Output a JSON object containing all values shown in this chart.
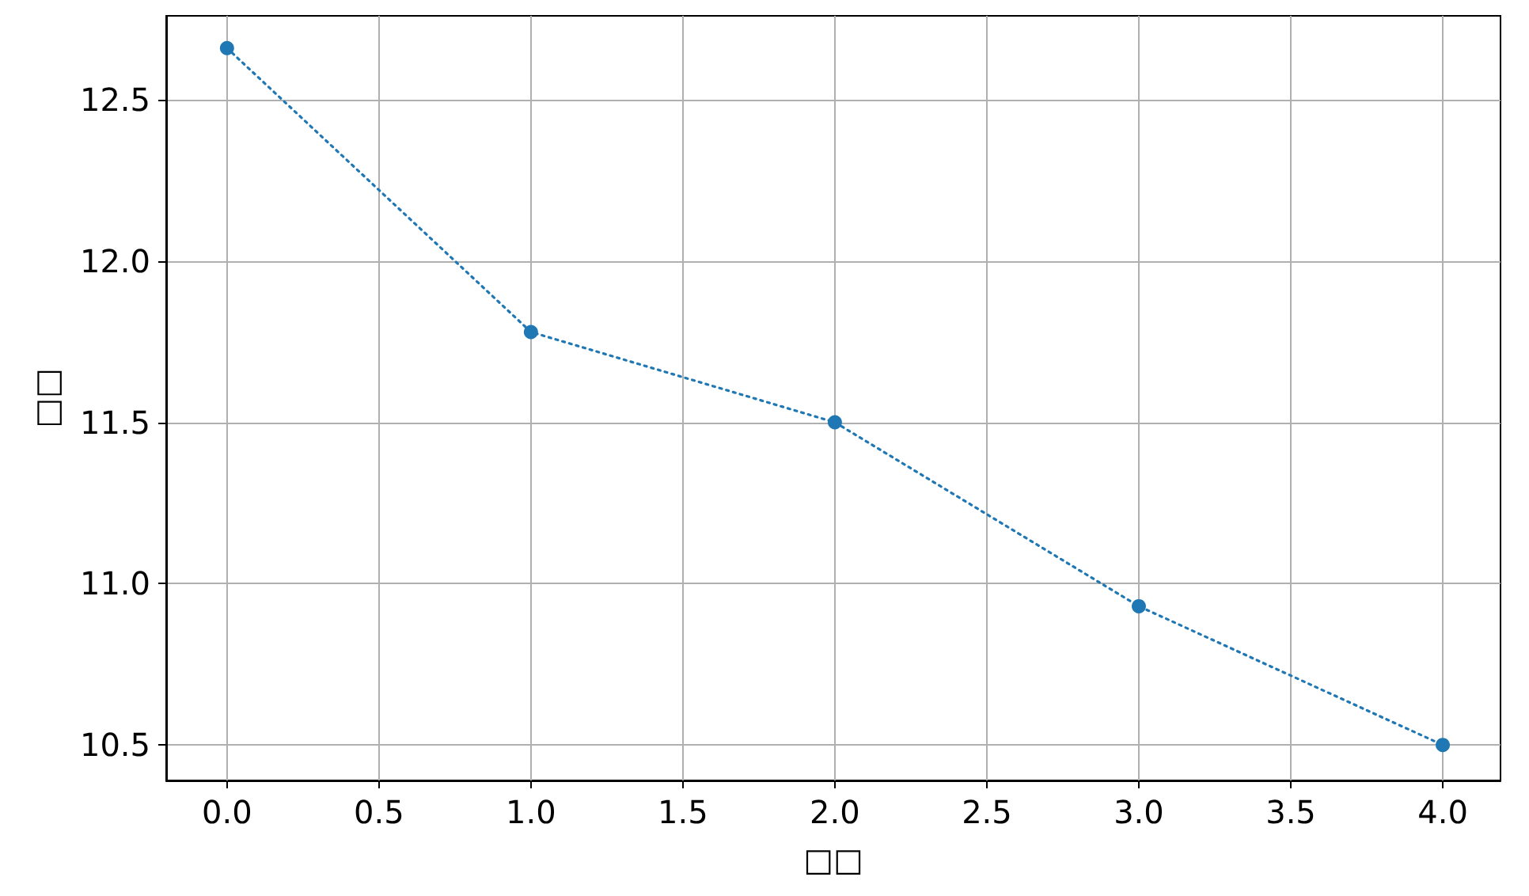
{
  "chart_data": {
    "type": "line",
    "xlabel": "□□",
    "ylabel": "□□",
    "x": [
      0,
      1,
      2,
      3,
      4
    ],
    "series": [
      {
        "color": "#1f77b4",
        "values": [
          12.66,
          11.78,
          11.5,
          10.93,
          10.5
        ]
      }
    ],
    "xlim": [
      -0.2,
      4.19
    ],
    "ylim": [
      10.39,
      12.76
    ],
    "xticks": [
      {
        "value": 0,
        "label": "0.0"
      },
      0.5,
      {
        "value": 1,
        "label": "1.0"
      },
      1.5,
      {
        "value": 2,
        "label": "2.0"
      },
      2.5,
      {
        "value": 3,
        "label": "3.0"
      },
      3.5,
      {
        "value": 4,
        "label": "4.0"
      }
    ],
    "yticks": [
      10.5,
      {
        "value": 11,
        "label": "11.0"
      },
      11.5,
      {
        "value": 12,
        "label": "12.0"
      },
      12.5
    ],
    "grid": true,
    "marker": "circle",
    "line_style": "dotted"
  }
}
